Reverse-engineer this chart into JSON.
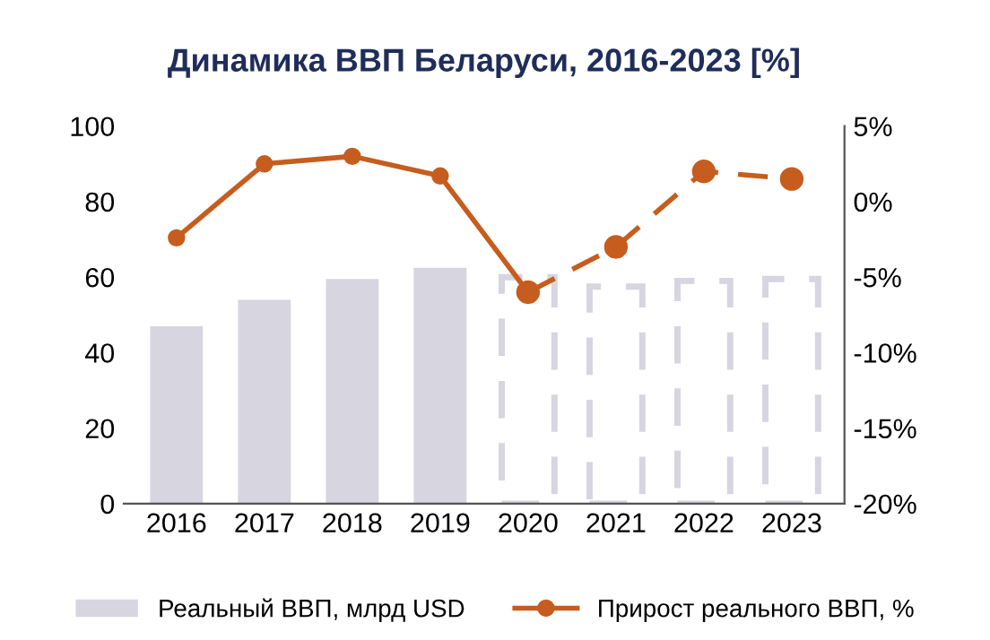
{
  "chart_data": {
    "type": "bar",
    "title": "Динамика ВВП Беларуси, 2016-2023 [%]",
    "categories": [
      "2016",
      "2017",
      "2018",
      "2019",
      "2020",
      "2021",
      "2022",
      "2023"
    ],
    "series": [
      {
        "name": "Реальный ВВП, млрд USD",
        "color": "#d6d5e0",
        "values": [
          47,
          54,
          59.5,
          62.5,
          null,
          null,
          null,
          null
        ]
      },
      {
        "color": "#d6d5e0",
        "line_style": "dashed",
        "values": [
          null,
          null,
          null,
          null,
          60,
          57.5,
          59,
          59.5
        ]
      },
      {
        "name": "Прирост реального ВВП, %",
        "type": "line",
        "axis": "y2",
        "color": "#c65d1e",
        "marker": "circle",
        "line_style": "solid",
        "values": [
          -2.4,
          2.5,
          3.0,
          1.7,
          -6.0,
          null,
          null,
          null
        ]
      },
      {
        "type": "line",
        "axis": "y2",
        "color": "#c65d1e",
        "marker": "circle",
        "line_style": "dashed",
        "values": [
          null,
          null,
          null,
          null,
          -6.0,
          -3.0,
          2.0,
          1.5
        ]
      }
    ],
    "ylim": [
      0,
      100
    ],
    "yticks": [
      0,
      20,
      40,
      60,
      80,
      100
    ],
    "y2lim": [
      -20,
      5
    ],
    "y2ticks": [
      {
        "value": -20,
        "label": "-20%"
      },
      {
        "value": -15,
        "label": "-15%"
      },
      {
        "value": -10,
        "label": "-10%"
      },
      {
        "value": -5,
        "label": "-5%"
      },
      {
        "value": 0,
        "label": "0%"
      },
      {
        "value": 5,
        "label": "5%"
      }
    ],
    "grid": false,
    "legend": "bottom"
  }
}
